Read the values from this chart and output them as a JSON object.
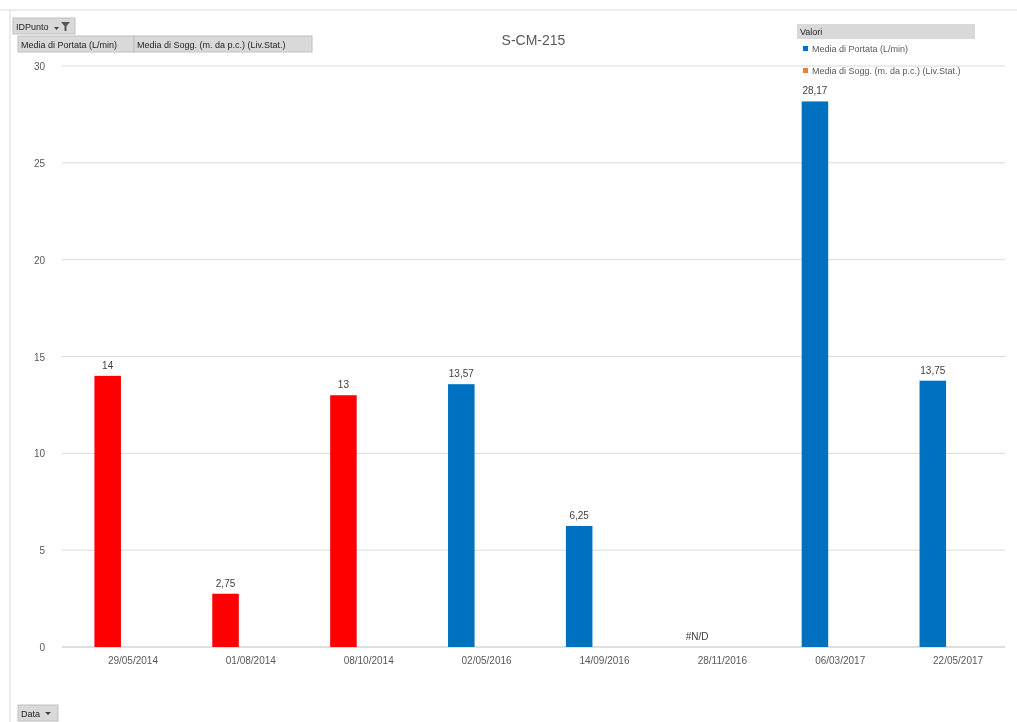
{
  "chart_data": {
    "type": "bar",
    "title": "S-CM-215",
    "categories": [
      "29/05/2014",
      "01/08/2014",
      "08/10/2014",
      "02/05/2016",
      "14/09/2016",
      "28/11/2016",
      "06/03/2017",
      "22/05/2017"
    ],
    "series": [
      {
        "name": "Media di Portata (L/min)",
        "color": "#0070c0",
        "colors": [
          "#ff0000",
          "#ff0000",
          "#ff0000",
          "#0070c0",
          "#0070c0",
          null,
          "#0070c0",
          "#0070c0"
        ],
        "values": [
          14,
          2.75,
          13,
          13.57,
          6.25,
          null,
          28.17,
          13.75
        ],
        "value_labels": [
          "14",
          "2,75",
          "13",
          "13,57",
          "6,25",
          "#N/D",
          "28,17",
          "13,75"
        ]
      },
      {
        "name": "Media di Sogg. (m. da p.c.) (Liv.Stat.)",
        "color": "#ed7d31",
        "values": [
          null,
          null,
          null,
          null,
          null,
          null,
          null,
          null
        ]
      }
    ],
    "ylim": [
      0,
      30
    ],
    "yticks": [
      0,
      5,
      10,
      15,
      20,
      25,
      30
    ],
    "grid": "y",
    "legend": "top right",
    "legend_title": "Valori",
    "annotations": [
      "IDPunto",
      "Media di Portata (L/min)",
      "Media di Sogg. (m. da p.c.) (Liv.Stat.)",
      "Data"
    ]
  }
}
